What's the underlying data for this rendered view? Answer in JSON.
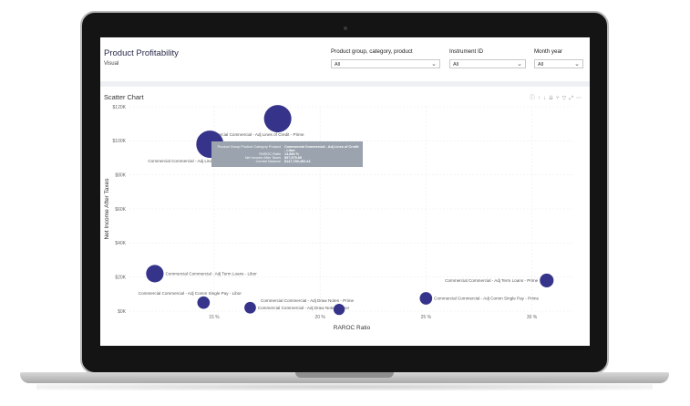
{
  "report": {
    "title": "Product Profitability",
    "subtitle": "Visual"
  },
  "filters": [
    {
      "label": "Product group, category, product",
      "value": "All"
    },
    {
      "label": "Instrument ID",
      "value": "All"
    },
    {
      "label": "Month year",
      "value": "All"
    }
  ],
  "visual": {
    "title": "Scatter Chart",
    "toolbar_icons": [
      "info-icon",
      "drill-up-icon",
      "drill-down-icon",
      "expand-next-level-icon",
      "expand-all-icon",
      "filter-icon",
      "focus-mode-icon",
      "more-options-icon"
    ]
  },
  "tooltip": {
    "rows": [
      {
        "key": "Product Group Product Category Product",
        "value": "Commercial Commercial - Adj Lines of Credit - Libor"
      },
      {
        "key": "RAROC Ratio",
        "value": "14.866 %"
      },
      {
        "key": "Net Income After Taxes",
        "value": "$97,975.89"
      },
      {
        "key": "Current Balance",
        "value": "$147,780,492.44"
      }
    ]
  },
  "chart_data": {
    "type": "scatter",
    "xlabel": "RAROC Ratio",
    "ylabel": "Net Income After Taxes",
    "x_ticks": [
      "15 %",
      "20 %",
      "25 %",
      "30 %"
    ],
    "y_ticks": [
      "$0K",
      "$20K",
      "$40K",
      "$60K",
      "$80K",
      "$100K",
      "$120K"
    ],
    "xlim": [
      11.0,
      32.0
    ],
    "ylim": [
      0,
      120000
    ],
    "bubble_color": "#35338a",
    "points": [
      {
        "label": "Commercial Commercial - Adj Lines of Credit - Prime",
        "x": 18.0,
        "y": 113000,
        "size": 1.0
      },
      {
        "label": "Commercial Commercial - Adj Lines of Credit - Libor",
        "x": 14.8,
        "y": 98000,
        "size": 1.0
      },
      {
        "label": "Commercial Commercial - Adj Term Loans - Libor",
        "x": 12.2,
        "y": 22000,
        "size": 0.55
      },
      {
        "label": "Commercial Commercial - Adj Comm Single Pay - Libor",
        "x": 14.5,
        "y": 5000,
        "size": 0.32
      },
      {
        "label": "Commercial Commercial - Adj Draw Notes - Libor",
        "x": 16.7,
        "y": 2000,
        "size": 0.28
      },
      {
        "label": "Commercial Commercial - Adj Draw Notes - Prime",
        "x": 20.9,
        "y": 1000,
        "size": 0.26
      },
      {
        "label": "Commercial Commercial - Adj Comm Single Pay - Prime",
        "x": 25.0,
        "y": 7500,
        "size": 0.32
      },
      {
        "label": "Commercial Commercial - Adj Term Loans - Prime",
        "x": 30.7,
        "y": 18000,
        "size": 0.38
      }
    ]
  }
}
